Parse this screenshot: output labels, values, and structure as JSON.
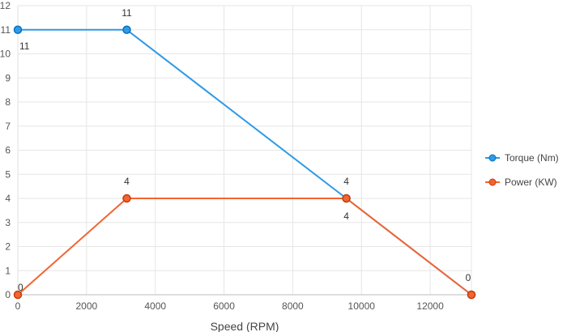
{
  "chart_data": {
    "type": "line",
    "title": "",
    "xlabel": "Speed (RPM)",
    "ylabel": "",
    "xlim": [
      0,
      13200
    ],
    "ylim": [
      0,
      12
    ],
    "xticks": [
      0,
      2000,
      4000,
      6000,
      8000,
      10000,
      12000
    ],
    "yticks": [
      0,
      1,
      2,
      3,
      4,
      5,
      6,
      7,
      8,
      9,
      10,
      11,
      12
    ],
    "grid": true,
    "legend_position": "right",
    "series": [
      {
        "name": "Torque (Nm)",
        "color": "#2f9ae6",
        "points": [
          {
            "x": 0,
            "y": 11,
            "label": "11"
          },
          {
            "x": 3170,
            "y": 11,
            "label": "11"
          },
          {
            "x": 9560,
            "y": 4,
            "label": "4"
          },
          {
            "x": 13200,
            "y": 0,
            "label": "0"
          }
        ]
      },
      {
        "name": "Power (KW)",
        "color": "#f26430",
        "points": [
          {
            "x": 0,
            "y": 0,
            "label": "0"
          },
          {
            "x": 3170,
            "y": 4,
            "label": "4"
          },
          {
            "x": 9560,
            "y": 4,
            "label": "4"
          },
          {
            "x": 13200,
            "y": 0,
            "label": ""
          }
        ]
      }
    ]
  }
}
